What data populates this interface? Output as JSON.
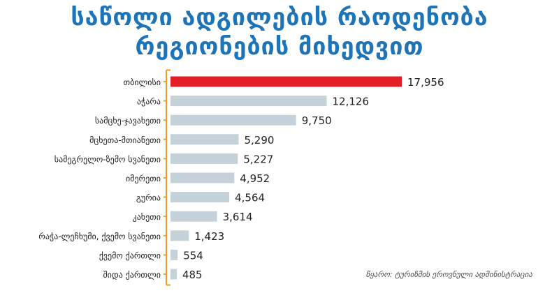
{
  "title_line1": "საწოლი ადგილების რაოდენობა",
  "title_line2": "რეგიონების მიხედვით",
  "source": "წყარო: ტურიზმის ეროვნული ადმინისტრაცია",
  "colors": {
    "highlight": "#e31e24",
    "bar": "#c5d2d9",
    "bracket": "#f39c22",
    "title": "#1f74b8"
  },
  "chart_data": {
    "type": "bar",
    "orientation": "horizontal",
    "categories": [
      "თბილისი",
      "აჭარა",
      "სამცხე-ჯავახეთი",
      "მცხეთა-მთიანეთი",
      "სამეგრელო-ზემო სვანეთი",
      "იმერეთი",
      "გურია",
      "კახეთი",
      "რაჭა-ლეჩხუმი, ქვემო სვანეთი",
      "ქვემო ქართლი",
      "შიდა ქართლი"
    ],
    "values": [
      17956,
      12126,
      9750,
      5290,
      5227,
      4952,
      4564,
      3614,
      1423,
      554,
      485
    ],
    "value_labels": [
      "17,956",
      "12,126",
      "9,750",
      "5,290",
      "5,227",
      "4,952",
      "4,564",
      "3,614",
      "1,423",
      "554",
      "485"
    ],
    "highlight_index": 0,
    "xlim": [
      0,
      17956
    ],
    "grid": false,
    "legend": "none"
  }
}
